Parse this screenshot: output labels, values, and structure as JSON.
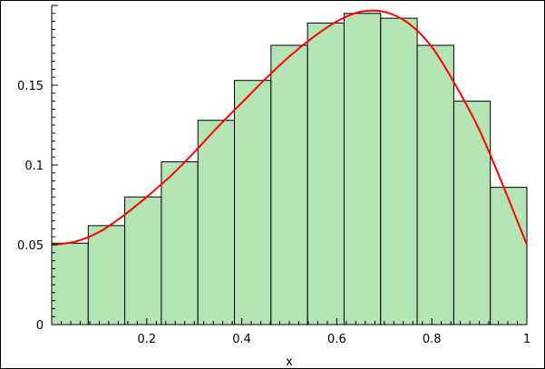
{
  "chart_data": {
    "type": "bar",
    "xlabel": "x",
    "ylabel": "",
    "xlim": [
      0,
      1
    ],
    "ylim": [
      0,
      0.2
    ],
    "grid": false,
    "colors": {
      "bar_fill": "#b4e4b4",
      "bar_stroke": "#000000",
      "curve": "#ff0000",
      "axis": "#000000"
    },
    "x_ticks": [
      0.2,
      0.4,
      0.6,
      0.8,
      1
    ],
    "x_tick_labels": [
      "0.2",
      "0.4",
      "0.6",
      "0.8",
      "1"
    ],
    "y_ticks": [
      0,
      0.05,
      0.1,
      0.15
    ],
    "y_tick_labels": [
      "0",
      "0.05",
      "0.1",
      "0.15"
    ],
    "bin_edges": [
      0,
      0.0769,
      0.1538,
      0.2308,
      0.3077,
      0.3846,
      0.4615,
      0.5385,
      0.6154,
      0.6923,
      0.7692,
      0.8462,
      0.9231,
      1.0
    ],
    "values": [
      0.051,
      0.062,
      0.08,
      0.102,
      0.128,
      0.153,
      0.175,
      0.189,
      0.195,
      0.192,
      0.175,
      0.14,
      0.086
    ],
    "curve": {
      "x": [
        0,
        0.05,
        0.1,
        0.15,
        0.2,
        0.25,
        0.3,
        0.35,
        0.4,
        0.45,
        0.5,
        0.55,
        0.6,
        0.65,
        0.7,
        0.75,
        0.8,
        0.85,
        0.9,
        0.95,
        1.0
      ],
      "y": [
        0.05,
        0.052,
        0.058,
        0.068,
        0.08,
        0.093,
        0.108,
        0.124,
        0.139,
        0.154,
        0.168,
        0.18,
        0.19,
        0.196,
        0.196,
        0.189,
        0.174,
        0.15,
        0.122,
        0.087,
        0.05
      ]
    }
  }
}
